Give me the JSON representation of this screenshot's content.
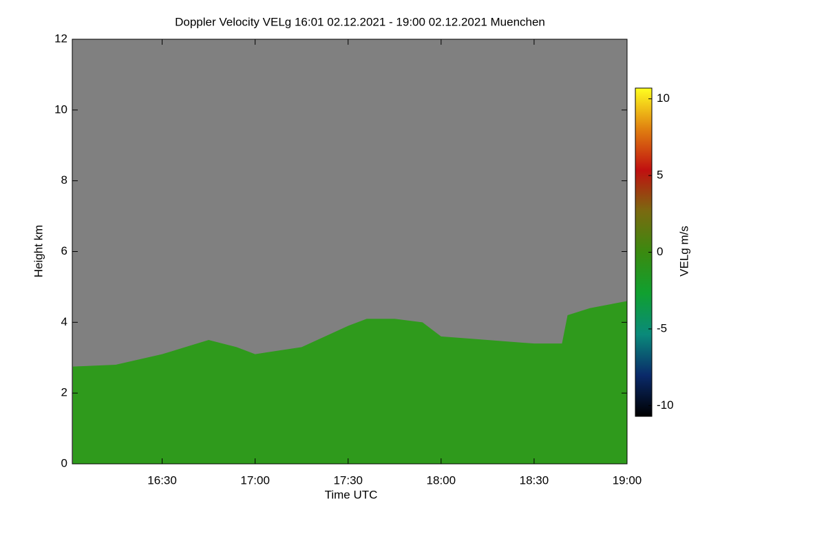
{
  "chart_data": {
    "type": "area",
    "title": "Doppler Velocity VELg   16:01 02.12.2021 - 19:00 02.12.2021 Muenchen",
    "x_label": "Time UTC",
    "y_label": "Height km",
    "x": [
      16.02,
      16.25,
      16.5,
      16.75,
      16.9,
      17.0,
      17.25,
      17.5,
      17.6,
      17.75,
      17.9,
      18.0,
      18.25,
      18.5,
      18.65,
      18.68,
      18.8,
      19.0
    ],
    "values": [
      2.75,
      2.8,
      3.1,
      3.5,
      3.3,
      3.1,
      3.3,
      3.9,
      4.1,
      4.1,
      4.0,
      3.6,
      3.5,
      3.4,
      3.4,
      4.2,
      4.4,
      4.6
    ],
    "color": "#2f9a1c",
    "background": "#808080",
    "xlim": [
      16.0167,
      19.0
    ],
    "xticks": [
      {
        "value": 16.5,
        "label": "16:30"
      },
      {
        "value": 17.0,
        "label": "17:00"
      },
      {
        "value": 17.5,
        "label": "17:30"
      },
      {
        "value": 18.0,
        "label": "18:00"
      },
      {
        "value": 18.5,
        "label": "18:30"
      },
      {
        "value": 19.0,
        "label": "19:00"
      }
    ],
    "ylim": [
      0,
      12
    ],
    "yticks": [
      0,
      2,
      4,
      6,
      8,
      10,
      12
    ],
    "colorbar": {
      "label": "VELg m/s",
      "clim": [
        -10.7,
        10.7
      ],
      "ticks": [
        -10,
        -5,
        0,
        5,
        10
      ],
      "colors": [
        "#000000",
        "#0a2a6a",
        "#0a8a7a",
        "#10a030",
        "#3a8a10",
        "#7a6a10",
        "#c01010",
        "#e08010",
        "#ffff20"
      ]
    }
  }
}
